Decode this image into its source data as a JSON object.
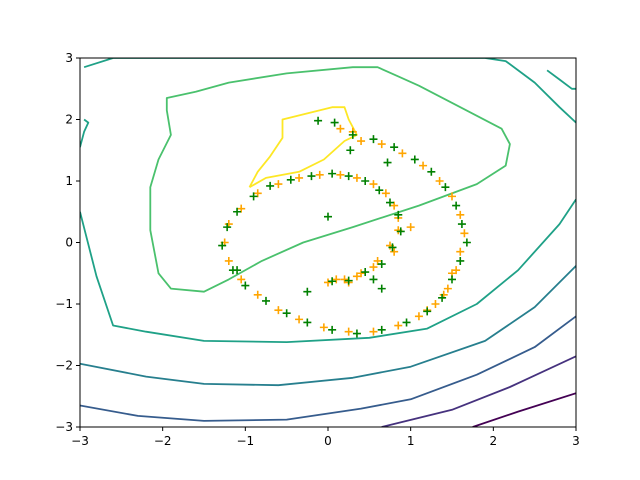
{
  "chart_data": {
    "type": "scatter",
    "title": "",
    "xlabel": "",
    "ylabel": "",
    "xlim": [
      -3,
      3
    ],
    "ylim": [
      -3,
      3
    ],
    "grid": false,
    "legend": "none",
    "x_ticks": [
      -3,
      -2,
      -1,
      0,
      1,
      2,
      3
    ],
    "y_ticks": [
      -3,
      -2,
      -1,
      0,
      1,
      2,
      3
    ],
    "x_tick_labels": [
      "−3",
      "−2",
      "−1",
      "0",
      "1",
      "2",
      "3"
    ],
    "y_tick_labels": [
      "−3",
      "−2",
      "−1",
      "0",
      "1",
      "2",
      "3"
    ],
    "contours": [
      {
        "level": 1,
        "color": "#440154",
        "points": [
          [
            1.75,
            -3.0
          ],
          [
            2.3,
            -2.75
          ],
          [
            3.0,
            -2.45
          ]
        ]
      },
      {
        "level": 2,
        "color": "#46327e",
        "points": [
          [
            0.65,
            -3.0
          ],
          [
            1.5,
            -2.72
          ],
          [
            2.2,
            -2.35
          ],
          [
            3.0,
            -1.85
          ]
        ]
      },
      {
        "level": 3,
        "color": "#365c8d",
        "points": [
          [
            -3.0,
            -2.65
          ],
          [
            -2.3,
            -2.82
          ],
          [
            -1.5,
            -2.9
          ],
          [
            -0.5,
            -2.88
          ],
          [
            0.4,
            -2.7
          ],
          [
            1.0,
            -2.55
          ],
          [
            1.8,
            -2.15
          ],
          [
            2.5,
            -1.7
          ],
          [
            3.0,
            -1.2
          ]
        ]
      },
      {
        "level": 4,
        "color": "#277f8e",
        "points": [
          [
            -3.0,
            -1.97
          ],
          [
            -2.2,
            -2.18
          ],
          [
            -1.5,
            -2.3
          ],
          [
            -0.6,
            -2.32
          ],
          [
            0.3,
            -2.2
          ],
          [
            1.0,
            -2.02
          ],
          [
            1.9,
            -1.6
          ],
          [
            2.5,
            -1.05
          ],
          [
            3.0,
            -0.38
          ]
        ]
      },
      {
        "level": 5,
        "color": "#1fa187",
        "points": [
          [
            -2.95,
            2.85
          ],
          [
            -2.6,
            3.0
          ],
          [
            -2.2,
            3.0
          ],
          [
            -1.5,
            3.0
          ],
          [
            -0.5,
            3.0
          ],
          [
            0.5,
            3.0
          ],
          [
            1.6,
            3.0
          ],
          [
            1.9,
            3.0
          ],
          [
            2.15,
            2.95
          ],
          [
            2.5,
            2.6
          ],
          [
            2.8,
            2.2
          ],
          [
            3.0,
            1.95
          ]
        ]
      },
      {
        "level": 5,
        "color": "#1fa187",
        "points": [
          [
            -3.0,
            1.55
          ],
          [
            -2.95,
            1.8
          ],
          [
            -2.9,
            1.95
          ],
          [
            -2.95,
            2.0
          ]
        ]
      },
      {
        "level": 5,
        "color": "#1fa187",
        "points": [
          [
            -3.0,
            0.5
          ],
          [
            -2.8,
            -0.55
          ],
          [
            -2.6,
            -1.35
          ],
          [
            -2.2,
            -1.45
          ],
          [
            -1.5,
            -1.6
          ],
          [
            -0.5,
            -1.62
          ],
          [
            0.5,
            -1.55
          ],
          [
            1.2,
            -1.4
          ],
          [
            1.8,
            -1.0
          ],
          [
            2.3,
            -0.45
          ],
          [
            2.8,
            0.3
          ],
          [
            3.0,
            0.7
          ]
        ]
      },
      {
        "level": 5,
        "color": "#1fa187",
        "points": [
          [
            2.65,
            2.8
          ],
          [
            2.8,
            2.65
          ],
          [
            2.95,
            2.5
          ],
          [
            3.0,
            2.5
          ]
        ]
      },
      {
        "level": 6,
        "color": "#4ac16d",
        "points": [
          [
            -1.6,
            2.45
          ],
          [
            -1.2,
            2.6
          ],
          [
            -0.5,
            2.75
          ],
          [
            0.3,
            2.85
          ],
          [
            0.6,
            2.85
          ],
          [
            0.85,
            2.7
          ],
          [
            1.1,
            2.55
          ],
          [
            1.6,
            2.2
          ],
          [
            2.1,
            1.85
          ],
          [
            2.2,
            1.6
          ],
          [
            2.15,
            1.25
          ],
          [
            1.8,
            0.95
          ],
          [
            1.1,
            0.6
          ],
          [
            0.3,
            0.25
          ],
          [
            -0.3,
            0.0
          ],
          [
            -0.8,
            -0.3
          ],
          [
            -1.2,
            -0.6
          ],
          [
            -1.5,
            -0.8
          ],
          [
            -1.9,
            -0.75
          ],
          [
            -2.05,
            -0.5
          ],
          [
            -2.15,
            0.2
          ],
          [
            -2.15,
            0.9
          ],
          [
            -2.05,
            1.35
          ],
          [
            -1.9,
            1.75
          ],
          [
            -1.95,
            2.15
          ],
          [
            -1.95,
            2.35
          ],
          [
            -1.6,
            2.45
          ]
        ]
      },
      {
        "level": 7,
        "color": "#fde725",
        "points": [
          [
            -0.95,
            0.9
          ],
          [
            -0.75,
            1.05
          ],
          [
            -0.35,
            1.15
          ],
          [
            -0.05,
            1.35
          ],
          [
            0.2,
            1.65
          ],
          [
            0.35,
            1.75
          ],
          [
            0.25,
            2.0
          ],
          [
            0.2,
            2.2
          ],
          [
            0.05,
            2.2
          ],
          [
            -0.25,
            2.1
          ],
          [
            -0.55,
            2.0
          ],
          [
            -0.55,
            1.7
          ],
          [
            -0.7,
            1.4
          ],
          [
            -0.85,
            1.15
          ],
          [
            -0.95,
            0.9
          ]
        ]
      }
    ],
    "series": [
      {
        "color": "#ffa500",
        "marker": "+",
        "x": [
          0.0,
          0.2,
          0.4,
          0.6,
          0.75,
          0.85,
          0.85,
          0.8,
          0.7,
          0.55,
          0.35,
          0.15,
          -0.1,
          -0.35,
          -0.6,
          -0.85,
          -1.05,
          -1.2,
          -1.25,
          -1.2,
          -1.05,
          -0.85,
          -0.6,
          -0.35,
          -0.05,
          0.25,
          0.55,
          0.85,
          1.1,
          1.3,
          1.45,
          1.55,
          1.6,
          1.65,
          1.6,
          1.5,
          1.35,
          1.15,
          0.9,
          0.65,
          0.4,
          0.15,
          0.3,
          0.25,
          0.1,
          0.35,
          0.55,
          0.8,
          1.0,
          1.2,
          1.4,
          1.5
        ],
        "y": [
          -0.65,
          -0.6,
          -0.5,
          -0.3,
          -0.05,
          0.2,
          0.4,
          0.6,
          0.8,
          0.95,
          1.05,
          1.1,
          1.1,
          1.05,
          0.95,
          0.8,
          0.55,
          0.3,
          0.0,
          -0.3,
          -0.6,
          -0.85,
          -1.1,
          -1.25,
          -1.38,
          -1.45,
          -1.45,
          -1.35,
          -1.2,
          -1.0,
          -0.75,
          -0.45,
          -0.15,
          0.15,
          0.45,
          0.75,
          1.0,
          1.25,
          1.45,
          1.6,
          1.65,
          1.85,
          1.8,
          -0.65,
          -0.6,
          -0.55,
          -0.4,
          -0.15,
          0.25,
          -1.1,
          -0.85,
          -0.5
        ]
      },
      {
        "color": "#008000",
        "marker": "+",
        "x": [
          0.05,
          0.25,
          0.45,
          0.65,
          0.78,
          0.88,
          0.85,
          0.75,
          0.62,
          0.45,
          0.25,
          0.05,
          -0.2,
          -0.45,
          -0.7,
          -0.9,
          -1.1,
          -1.22,
          -1.28,
          -1.15,
          -1.0,
          -0.75,
          -0.5,
          -0.25,
          0.05,
          0.35,
          0.65,
          0.95,
          1.2,
          1.38,
          1.5,
          1.6,
          1.68,
          1.62,
          1.55,
          1.42,
          1.25,
          1.05,
          0.8,
          0.55,
          0.3,
          0.08,
          -0.12,
          0.0,
          0.27,
          -0.25,
          0.65,
          0.55,
          -1.1,
          0.72
        ],
        "y": [
          -0.63,
          -0.62,
          -0.48,
          -0.35,
          -0.08,
          0.18,
          0.45,
          0.65,
          0.85,
          1.0,
          1.08,
          1.12,
          1.08,
          1.02,
          0.92,
          0.75,
          0.5,
          0.25,
          -0.05,
          -0.45,
          -0.7,
          -0.95,
          -1.15,
          -1.3,
          -1.42,
          -1.48,
          -1.42,
          -1.3,
          -1.12,
          -0.9,
          -0.6,
          -0.3,
          0.0,
          0.3,
          0.6,
          0.9,
          1.15,
          1.35,
          1.55,
          1.68,
          1.75,
          1.95,
          1.98,
          0.42,
          1.5,
          -0.8,
          -0.75,
          -0.6,
          -0.45,
          1.3
        ]
      }
    ]
  }
}
